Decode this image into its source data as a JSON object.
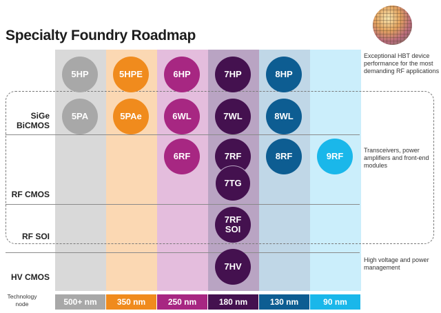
{
  "title": "Specialty Foundry Roadmap",
  "colors": {
    "c500": "#d9d9d9",
    "c350": "#fbd8b3",
    "c250": "#e4bddd",
    "c180": "#b9a4c3",
    "c130": "#c0d7e7",
    "c90": "#cbeefb",
    "node500": "#a8a8a8",
    "node350": "#f08b1d",
    "node250": "#a72782",
    "node180": "#44114f",
    "node130": "#0d5d92",
    "node90": "#1ab7ea"
  },
  "row_labels": {
    "sige": "SiGe\nBiCMOS",
    "rfcmos": "RF CMOS",
    "rfsoi": "RF SOI",
    "hvcmos": "HV CMOS"
  },
  "notes": {
    "hbt": "Exceptional HBT device performance for the most demanding RF applications",
    "trans": "Transceivers, power amplifiers and front-end modules",
    "hv": "High voltage and power management"
  },
  "tech_label": "Technology node",
  "nodes": [
    "500+ nm",
    "350 nm",
    "250 nm",
    "180 nm",
    "130 nm",
    "90 nm"
  ],
  "bubbles": {
    "b5hp": "5HP",
    "b5hpe": "5HPE",
    "b6hp": "6HP",
    "b7hp": "7HP",
    "b8hp": "8HP",
    "b5pa": "5PA",
    "b5pae": "5PAe",
    "b6wl": "6WL",
    "b7wl": "7WL",
    "b8wl": "8WL",
    "b6rf": "6RF",
    "b7rf": "7RF",
    "b8rf": "8RF",
    "b9rf": "9RF",
    "b7tg": "7TG",
    "b7rfsoi": "7RF\nSOI",
    "b7hv": "7HV"
  }
}
